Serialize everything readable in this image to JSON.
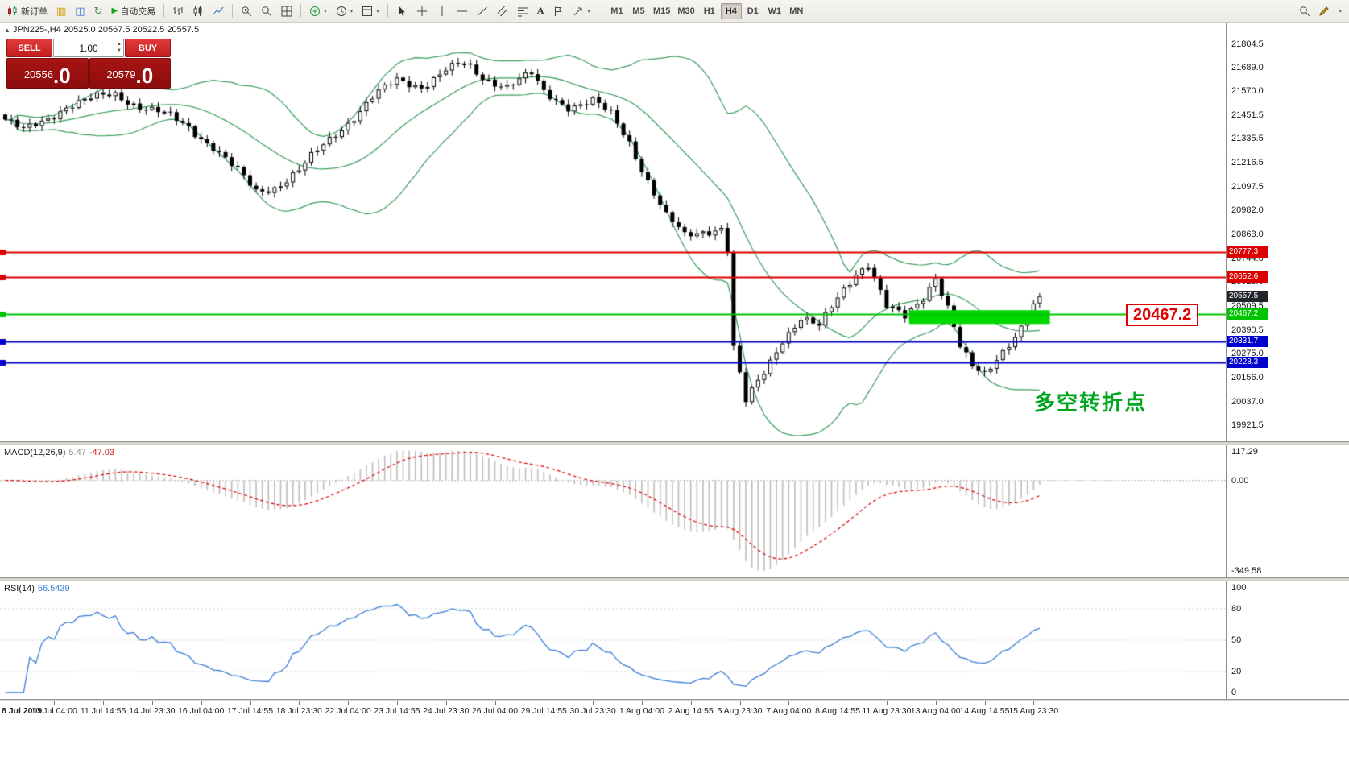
{
  "toolbar": {
    "new_order": {
      "label": "新订单"
    },
    "autotrading": {
      "label": "自动交易"
    },
    "timeframes": {
      "items": [
        "M1",
        "M5",
        "M15",
        "M30",
        "H1",
        "H4",
        "D1",
        "W1",
        "MN"
      ],
      "active": "H4"
    }
  },
  "chart_header": {
    "arrow": "▲",
    "text": "JPN225-,H4 20525.0 20567.5 20522.5 20557.5"
  },
  "order_panel": {
    "sell_label": "SELL",
    "buy_label": "BUY",
    "volume": "1.00",
    "sell_price": {
      "main": "20556",
      "big": ".0"
    },
    "buy_price": {
      "main": "20579",
      "big": ".0"
    }
  },
  "annotations": {
    "level_label": "20467.2",
    "turning_point": "多空转折点"
  },
  "macd_header": {
    "name": "MACD(12,26,9)",
    "value_main": "5.47",
    "value_signal": "-47.03"
  },
  "rsi_header": {
    "name": "RSI(14)",
    "value": "56.5439"
  },
  "colors": {
    "line_red": "#dd0000",
    "line_green": "#00c400",
    "line_blue": "#0000cc",
    "highlight_green": "#00d800",
    "current_badge": "#23252e",
    "bollinger_green": "#3a9d5d",
    "macd_histogram": "#bdbdbd",
    "macd_signal": "#dd0000",
    "rsi_blue": "#3b7dd8",
    "panel_red": "#a81414"
  },
  "chart_data": {
    "type": "candlestick",
    "title": "JPN225-,H4",
    "symbol": "JPN225-",
    "timeframe": "H4",
    "ohlc": {
      "open": 20525.0,
      "high": 20567.5,
      "low": 20522.5,
      "close": 20557.5
    },
    "bar_count": 170,
    "bars_per_label": 8,
    "x_labels": [
      "8 Jul 2019",
      "10 Jul 04:00",
      "11 Jul 14:55",
      "14 Jul 23:30",
      "16 Jul 04:00",
      "17 Jul 14:55",
      "18 Jul 23:30",
      "22 Jul 04:00",
      "23 Jul 14:55",
      "24 Jul 23:30",
      "26 Jul 04:00",
      "29 Jul 14:55",
      "30 Jul 23:30",
      "1 Aug 04:00",
      "2 Aug 14:55",
      "5 Aug 23:30",
      "7 Aug 04:00",
      "8 Aug 14:55",
      "11 Aug 23:30",
      "13 Aug 04:00",
      "14 Aug 14:55",
      "15 Aug 23:30"
    ],
    "y_axis": {
      "min": 19840,
      "max": 21910,
      "ticks": [
        21804.5,
        21689.0,
        21570.0,
        21451.5,
        21335.5,
        21216.5,
        21097.5,
        20982.0,
        20863.0,
        20744.0,
        20628.5,
        20509.5,
        20390.5,
        20275.0,
        20156.0,
        20037.0,
        19921.5
      ]
    },
    "close_path": [
      [
        0,
        21430
      ],
      [
        3,
        21370
      ],
      [
        6,
        21420
      ],
      [
        10,
        21500
      ],
      [
        14,
        21530
      ],
      [
        18,
        21555
      ],
      [
        22,
        21500
      ],
      [
        26,
        21455
      ],
      [
        30,
        21390
      ],
      [
        34,
        21300
      ],
      [
        38,
        21170
      ],
      [
        41,
        21070
      ],
      [
        44,
        21100
      ],
      [
        48,
        21180
      ],
      [
        52,
        21300
      ],
      [
        56,
        21420
      ],
      [
        60,
        21540
      ],
      [
        64,
        21620
      ],
      [
        68,
        21600
      ],
      [
        72,
        21675
      ],
      [
        75,
        21700
      ],
      [
        78,
        21640
      ],
      [
        82,
        21600
      ],
      [
        86,
        21650
      ],
      [
        88,
        21560
      ],
      [
        92,
        21500
      ],
      [
        96,
        21520
      ],
      [
        99,
        21450
      ],
      [
        102,
        21320
      ],
      [
        105,
        21130
      ],
      [
        108,
        20950
      ],
      [
        111,
        20850
      ],
      [
        114,
        20880
      ],
      [
        117,
        20900
      ],
      [
        118,
        20790
      ],
      [
        119,
        20300
      ],
      [
        121,
        20030
      ],
      [
        124,
        20180
      ],
      [
        127,
        20350
      ],
      [
        130,
        20450
      ],
      [
        133,
        20400
      ],
      [
        136,
        20550
      ],
      [
        139,
        20680
      ],
      [
        141,
        20720
      ],
      [
        144,
        20500
      ],
      [
        147,
        20450
      ],
      [
        150,
        20560
      ],
      [
        152,
        20660
      ],
      [
        154,
        20500
      ],
      [
        156,
        20300
      ],
      [
        158,
        20200
      ],
      [
        160,
        20170
      ],
      [
        162,
        20260
      ],
      [
        164,
        20330
      ],
      [
        166,
        20400
      ],
      [
        169,
        20557.5
      ]
    ],
    "last_close": 20557.5,
    "current_price": 20557.5,
    "horizontal_lines": [
      {
        "price": 20777.3,
        "color": "#dd0000"
      },
      {
        "price": 20652.6,
        "color": "#dd0000"
      },
      {
        "price": 20467.2,
        "color": "#00c400"
      },
      {
        "price": 20331.7,
        "color": "#0000cc"
      },
      {
        "price": 20228.3,
        "color": "#0000cc"
      }
    ],
    "highlight_zone": {
      "from_bar": 148,
      "to_bar": 171,
      "top_price": 20488,
      "bottom_price": 20420,
      "color": "#00d800"
    },
    "bollinger": {
      "period": 20,
      "deviations": 2,
      "color": "#3a9d5d"
    },
    "indicators": {
      "macd": {
        "params": [
          12,
          26,
          9
        ],
        "value_main": 5.47,
        "value_signal": -47.03,
        "axis_ticks": [
          117.29,
          0.0,
          -349.58
        ],
        "histogram_color": "#bdbdbd",
        "signal_color": "#dd0000"
      },
      "rsi": {
        "period": 14,
        "value": 56.5439,
        "axis_ticks": [
          100,
          80,
          50,
          20,
          0
        ],
        "levels": [
          80,
          50,
          20
        ],
        "line_color": "#3b7dd8"
      }
    }
  }
}
